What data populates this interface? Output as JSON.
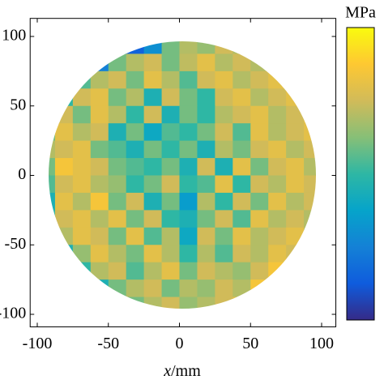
{
  "chart_data": {
    "type": "heatmap",
    "xlabel_var": "x",
    "xlabel_unit": "/mm",
    "colorbar": {
      "label": "MPa",
      "colormap": "parula",
      "clim": [
        0,
        1
      ]
    },
    "xlim": [
      -105,
      110
    ],
    "ylim": [
      -109,
      113
    ],
    "xticks": [
      -100,
      -50,
      0,
      50,
      100
    ],
    "yticks": [
      -100,
      -50,
      0,
      50,
      100
    ],
    "x": [
      -93.75,
      -81.25,
      -68.75,
      -56.25,
      -43.75,
      -31.25,
      -18.75,
      -6.25,
      6.25,
      18.75,
      31.25,
      43.75,
      56.25,
      68.75,
      81.25,
      93.75
    ],
    "y": [
      93.75,
      81.25,
      68.75,
      56.25,
      43.75,
      31.25,
      18.75,
      6.25,
      -6.25,
      -18.75,
      -31.25,
      -43.75,
      -56.25,
      -68.75,
      -81.25,
      -93.75
    ],
    "z": [
      [
        null,
        null,
        null,
        null,
        0.2,
        0.15,
        0.3,
        0.6,
        0.7,
        0.65,
        0.75,
        0.7,
        null,
        null,
        null,
        null
      ],
      [
        null,
        null,
        null,
        0.25,
        0.6,
        0.7,
        0.75,
        0.6,
        0.72,
        0.8,
        0.7,
        0.75,
        0.7,
        null,
        null,
        null
      ],
      [
        null,
        null,
        0.55,
        0.7,
        0.75,
        0.6,
        0.8,
        0.7,
        0.55,
        0.75,
        0.8,
        0.7,
        0.75,
        0.8,
        null,
        null
      ],
      [
        null,
        0.5,
        0.75,
        0.8,
        0.6,
        0.7,
        0.45,
        0.75,
        0.6,
        0.5,
        0.75,
        0.8,
        0.7,
        0.75,
        0.8,
        null
      ],
      [
        0.5,
        0.75,
        0.6,
        0.8,
        0.7,
        0.5,
        0.75,
        0.45,
        0.6,
        0.5,
        0.7,
        0.75,
        0.8,
        0.7,
        0.75,
        0.8
      ],
      [
        0.6,
        0.8,
        0.7,
        0.75,
        0.45,
        0.6,
        0.4,
        0.55,
        0.5,
        0.6,
        0.75,
        0.55,
        0.8,
        0.7,
        0.75,
        0.8
      ],
      [
        0.7,
        0.75,
        0.8,
        0.6,
        0.55,
        0.45,
        0.6,
        0.5,
        0.6,
        0.45,
        0.7,
        0.6,
        0.75,
        0.8,
        0.7,
        0.75
      ],
      [
        0.6,
        0.85,
        0.8,
        0.75,
        0.6,
        0.55,
        0.5,
        0.6,
        0.45,
        0.75,
        0.45,
        0.8,
        0.6,
        0.75,
        0.8,
        0.7
      ],
      [
        0.55,
        0.75,
        0.8,
        0.7,
        0.65,
        0.5,
        0.6,
        0.75,
        0.5,
        0.55,
        0.8,
        0.5,
        0.75,
        0.7,
        0.8,
        0.75
      ],
      [
        0.45,
        0.8,
        0.7,
        0.85,
        0.6,
        0.75,
        0.45,
        0.6,
        0.35,
        0.7,
        0.5,
        0.75,
        0.6,
        0.8,
        0.7,
        0.75
      ],
      [
        0.5,
        0.75,
        0.8,
        0.7,
        0.8,
        0.6,
        0.75,
        0.5,
        0.45,
        0.6,
        0.75,
        0.55,
        0.8,
        0.7,
        0.75,
        0.7
      ],
      [
        0.45,
        0.7,
        0.8,
        0.75,
        0.6,
        0.8,
        0.55,
        0.7,
        0.4,
        0.75,
        0.6,
        0.8,
        0.7,
        0.75,
        0.8,
        0.7
      ],
      [
        null,
        0.45,
        0.65,
        0.8,
        0.7,
        0.6,
        0.8,
        0.7,
        0.5,
        0.7,
        0.55,
        0.75,
        0.7,
        0.8,
        0.75,
        null
      ],
      [
        null,
        null,
        0.5,
        0.7,
        0.75,
        0.55,
        0.7,
        0.8,
        0.6,
        0.75,
        0.7,
        0.65,
        0.75,
        0.85,
        null,
        null
      ],
      [
        null,
        null,
        null,
        0.45,
        0.6,
        0.7,
        0.75,
        0.6,
        0.7,
        0.65,
        0.75,
        0.7,
        0.85,
        null,
        null,
        null
      ],
      [
        null,
        null,
        null,
        null,
        0.5,
        0.6,
        0.7,
        0.75,
        0.65,
        0.7,
        0.75,
        0.8,
        null,
        null,
        null,
        null
      ]
    ]
  }
}
